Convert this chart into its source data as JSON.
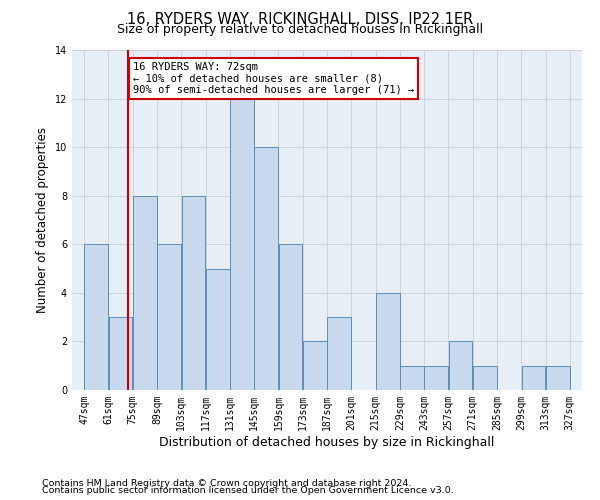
{
  "title": "16, RYDERS WAY, RICKINGHALL, DISS, IP22 1ER",
  "subtitle": "Size of property relative to detached houses in Rickinghall",
  "xlabel": "Distribution of detached houses by size in Rickinghall",
  "ylabel": "Number of detached properties",
  "footnote1": "Contains HM Land Registry data © Crown copyright and database right 2024.",
  "footnote2": "Contains public sector information licensed under the Open Government Licence v3.0.",
  "bins": [
    47,
    61,
    75,
    89,
    103,
    117,
    131,
    145,
    159,
    173,
    187,
    201,
    215,
    229,
    243,
    257,
    271,
    285,
    299,
    313,
    327
  ],
  "counts": [
    6,
    3,
    8,
    6,
    8,
    5,
    12,
    10,
    6,
    2,
    3,
    0,
    4,
    1,
    1,
    2,
    1,
    0,
    1,
    1
  ],
  "bar_facecolor": "#c8d9ee",
  "bar_edgecolor": "#5b8db8",
  "grid_color": "#c8c8d0",
  "bg_color": "#e8eef6",
  "vline_x": 72,
  "vline_color": "#cc0000",
  "annotation_text": "16 RYDERS WAY: 72sqm\n← 10% of detached houses are smaller (8)\n90% of semi-detached houses are larger (71) →",
  "annotation_box_edgecolor": "#cc0000",
  "annotation_box_facecolor": "#ffffff",
  "ylim": [
    0,
    14
  ],
  "yticks": [
    0,
    2,
    4,
    6,
    8,
    10,
    12,
    14
  ],
  "title_fontsize": 10.5,
  "subtitle_fontsize": 9,
  "ylabel_fontsize": 8.5,
  "xlabel_fontsize": 9,
  "tick_fontsize": 7,
  "annot_fontsize": 7.5,
  "footnote_fontsize": 6.8
}
